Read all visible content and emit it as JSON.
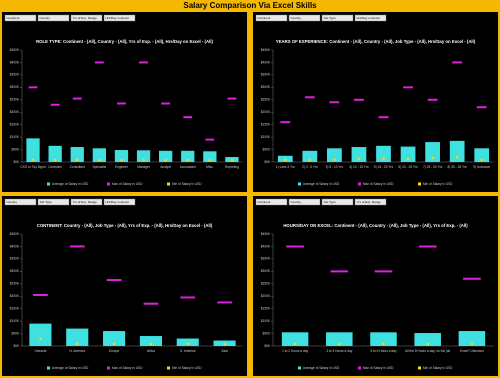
{
  "title": "Salary Comparison Via Excel Skills",
  "chart_data": [
    {
      "type": "bar",
      "title": "ROLE TYPE: Continent - (All), Country - (All), Yrs of Exp. - (All), Hrs/Day on Excel - (All)",
      "filters": [
        "Continent",
        "Country",
        "Yrs of Exp. Range",
        "Hrs/Day on Excel"
      ],
      "categories": [
        "CXO or Top Mgmt",
        "Controller",
        "Consultant",
        "Specialist",
        "Engineer",
        "Manager",
        "Analyst",
        "Accountant",
        "Misc.",
        "Reporting"
      ],
      "series": [
        {
          "name": "Average of Salary in USD",
          "color": "#3fe0e0",
          "kind": "bar",
          "values": [
            95000,
            65000,
            60000,
            55000,
            48000,
            47000,
            45000,
            45000,
            43000,
            20000
          ]
        },
        {
          "name": "Max of Salary in USD",
          "color": "#e020e0",
          "kind": "dash",
          "values": [
            300000,
            230000,
            255000,
            400000,
            235000,
            400000,
            235000,
            180000,
            90000,
            255000
          ]
        },
        {
          "name": "Min of Salary in USD",
          "color": "#ffd700",
          "kind": "dot",
          "values": [
            5000,
            4000,
            5000,
            4000,
            4000,
            5000,
            3000,
            4000,
            3000,
            3000
          ]
        }
      ],
      "ylim": [
        0,
        450000
      ],
      "yticks": [
        {
          "value": 0,
          "label": "$0K"
        },
        {
          "value": 50000,
          "label": "$50K"
        },
        {
          "value": 100000,
          "label": "$100K"
        },
        {
          "value": 150000,
          "label": "$150K"
        },
        {
          "value": 200000,
          "label": "$200K"
        },
        {
          "value": 250000,
          "label": "$250K"
        },
        {
          "value": 300000,
          "label": "$300K"
        },
        {
          "value": 350000,
          "label": "$350K"
        },
        {
          "value": 400000,
          "label": "$400K"
        },
        {
          "value": 450000,
          "label": "$450K"
        }
      ]
    },
    {
      "type": "bar",
      "title": "YEARS OF EXPERIENCE: Continent - (All), Country - (All), Job Type - (All), Hrs/Day on Excel - (All)",
      "filters": [
        "Continent",
        "Country",
        "Job Type",
        "Hrs/Day on Excel"
      ],
      "categories": [
        "1) Less 3 Yrs",
        "2) 3 - 5 Yrs",
        "3) 5 - 10 Yrs",
        "4) 10 - 15 Yrs",
        "5) 15 - 20 Yrs",
        "6) 20 - 25 Yrs",
        "7) 25 - 30 Yrs",
        "8) 30 - 35 Yrs",
        "9) Unknown"
      ],
      "series": [
        {
          "name": "Average of Salary in USD",
          "color": "#3fe0e0",
          "kind": "bar",
          "values": [
            25000,
            45000,
            55000,
            60000,
            65000,
            62000,
            80000,
            85000,
            55000
          ]
        },
        {
          "name": "Max of Salary in USD",
          "color": "#e020e0",
          "kind": "dash",
          "values": [
            160000,
            260000,
            240000,
            250000,
            180000,
            300000,
            250000,
            400000,
            220000
          ]
        },
        {
          "name": "Min of Salary in USD",
          "color": "#ffd700",
          "kind": "dot",
          "values": [
            4000,
            5000,
            6000,
            8000,
            10000,
            8000,
            12000,
            15000,
            5000
          ]
        }
      ],
      "ylim": [
        0,
        450000
      ],
      "yticks": [
        {
          "value": 0,
          "label": "$0K"
        },
        {
          "value": 50000,
          "label": "$50K"
        },
        {
          "value": 100000,
          "label": "$100K"
        },
        {
          "value": 150000,
          "label": "$150K"
        },
        {
          "value": 200000,
          "label": "$200K"
        },
        {
          "value": 250000,
          "label": "$250K"
        },
        {
          "value": 300000,
          "label": "$300K"
        },
        {
          "value": 350000,
          "label": "$350K"
        },
        {
          "value": 400000,
          "label": "$400K"
        },
        {
          "value": 450000,
          "label": "$450K"
        }
      ]
    },
    {
      "type": "bar",
      "title": "CONTINENT: Country - (All), Job Type - (All), Yrs of Exp. - (All), Hrs/Day on Excel - (All)",
      "filters": [
        "Country",
        "Job Type",
        "Yrs of Exp. Range",
        "Hrs/Day on Excel"
      ],
      "categories": [
        "Oceania",
        "N. America",
        "Europe",
        "Africa",
        "S. America",
        "Asia"
      ],
      "series": [
        {
          "name": "Average of Salary in USD",
          "color": "#3fe0e0",
          "kind": "bar",
          "values": [
            90000,
            70000,
            60000,
            40000,
            30000,
            22000
          ]
        },
        {
          "name": "Max of Salary in USD",
          "color": "#e020e0",
          "kind": "dash",
          "values": [
            205000,
            400000,
            265000,
            170000,
            195000,
            175000
          ]
        },
        {
          "name": "Min of Salary in USD",
          "color": "#ffd700",
          "kind": "dot",
          "values": [
            25000,
            5000,
            5000,
            4000,
            5000,
            3000
          ]
        }
      ],
      "ylim": [
        0,
        450000
      ],
      "yticks": [
        {
          "value": 0,
          "label": "$0K"
        },
        {
          "value": 50000,
          "label": "$50K"
        },
        {
          "value": 100000,
          "label": "$100K"
        },
        {
          "value": 150000,
          "label": "$150K"
        },
        {
          "value": 200000,
          "label": "$200K"
        },
        {
          "value": 250000,
          "label": "$250K"
        },
        {
          "value": 300000,
          "label": "$300K"
        },
        {
          "value": 350000,
          "label": "$350K"
        },
        {
          "value": 400000,
          "label": "$400K"
        },
        {
          "value": 450000,
          "label": "$450K"
        }
      ]
    },
    {
      "type": "bar",
      "title": "HOURS/DAY ON EXCEL: Continent - (All), Country - (All), Job Type - (All), Yrs of Exp. - (All)",
      "filters": [
        "Continent",
        "Country",
        "Job Type",
        "Yrs of Exp. Range"
      ],
      "categories": [
        "1 to 2 Hours a day",
        "3 to 4 Hours a day",
        "5 to 6 Hours a day",
        "All the 8 Hours a day, on the job",
        "Excel? Unknown"
      ],
      "series": [
        {
          "name": "Average of Salary in USD",
          "color": "#3fe0e0",
          "kind": "bar",
          "values": [
            55000,
            55000,
            55000,
            52000,
            60000
          ]
        },
        {
          "name": "Max of Salary in USD",
          "color": "#e020e0",
          "kind": "dash",
          "values": [
            400000,
            300000,
            300000,
            400000,
            270000
          ]
        },
        {
          "name": "Min of Salary in USD",
          "color": "#ffd700",
          "kind": "dot",
          "values": [
            4000,
            4000,
            5000,
            4000,
            5000
          ]
        }
      ],
      "ylim": [
        0,
        450000
      ],
      "yticks": [
        {
          "value": 0,
          "label": "$0K"
        },
        {
          "value": 50000,
          "label": "$50K"
        },
        {
          "value": 100000,
          "label": "$100K"
        },
        {
          "value": 150000,
          "label": "$150K"
        },
        {
          "value": 200000,
          "label": "$200K"
        },
        {
          "value": 250000,
          "label": "$250K"
        },
        {
          "value": 300000,
          "label": "$300K"
        },
        {
          "value": 350000,
          "label": "$350K"
        },
        {
          "value": 400000,
          "label": "$400K"
        },
        {
          "value": 450000,
          "label": "$450K"
        }
      ]
    }
  ]
}
